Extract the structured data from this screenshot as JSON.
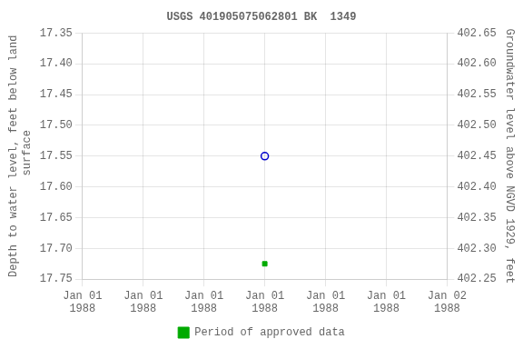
{
  "chart_data": {
    "type": "scatter",
    "title": "USGS 401905075062801 BK  1349",
    "ylabel": "Depth to water level, feet below land\n surface",
    "y2label": "Groundwater level above NGVD 1929, feet",
    "categories": [
      "Jan 01\n1988",
      "Jan 01\n1988",
      "Jan 01\n1988",
      "Jan 01\n1988",
      "Jan 01\n1988",
      "Jan 01\n1988",
      "Jan 02\n1988"
    ],
    "series": [
      {
        "color": "#0000cc",
        "marker": "circle_open",
        "values": [
          null,
          null,
          null,
          17.55,
          null,
          null,
          null
        ]
      },
      {
        "name": "Period of approved data",
        "color": "#00aa00",
        "marker": "square",
        "values": [
          null,
          null,
          null,
          17.725,
          null,
          null,
          null
        ]
      }
    ],
    "ylim": [
      17.75,
      17.35
    ],
    "yticks": [
      17.35,
      {
        "value": 17.4,
        "label": "17.40"
      },
      17.45,
      {
        "value": 17.5,
        "label": "17.50"
      },
      17.55,
      {
        "value": 17.6,
        "label": "17.60"
      },
      17.65,
      {
        "value": 17.7,
        "label": "17.70"
      },
      17.75
    ],
    "y2lim": [
      402.25,
      402.65
    ],
    "y2ticks": [
      402.65,
      {
        "value": 402.6,
        "label": "402.60"
      },
      402.55,
      {
        "value": 402.5,
        "label": "402.50"
      },
      402.45,
      {
        "value": 402.4,
        "label": "402.40"
      },
      402.35,
      {
        "value": 402.3,
        "label": "402.30"
      },
      402.25
    ],
    "grid": true,
    "legend": "bottom"
  }
}
